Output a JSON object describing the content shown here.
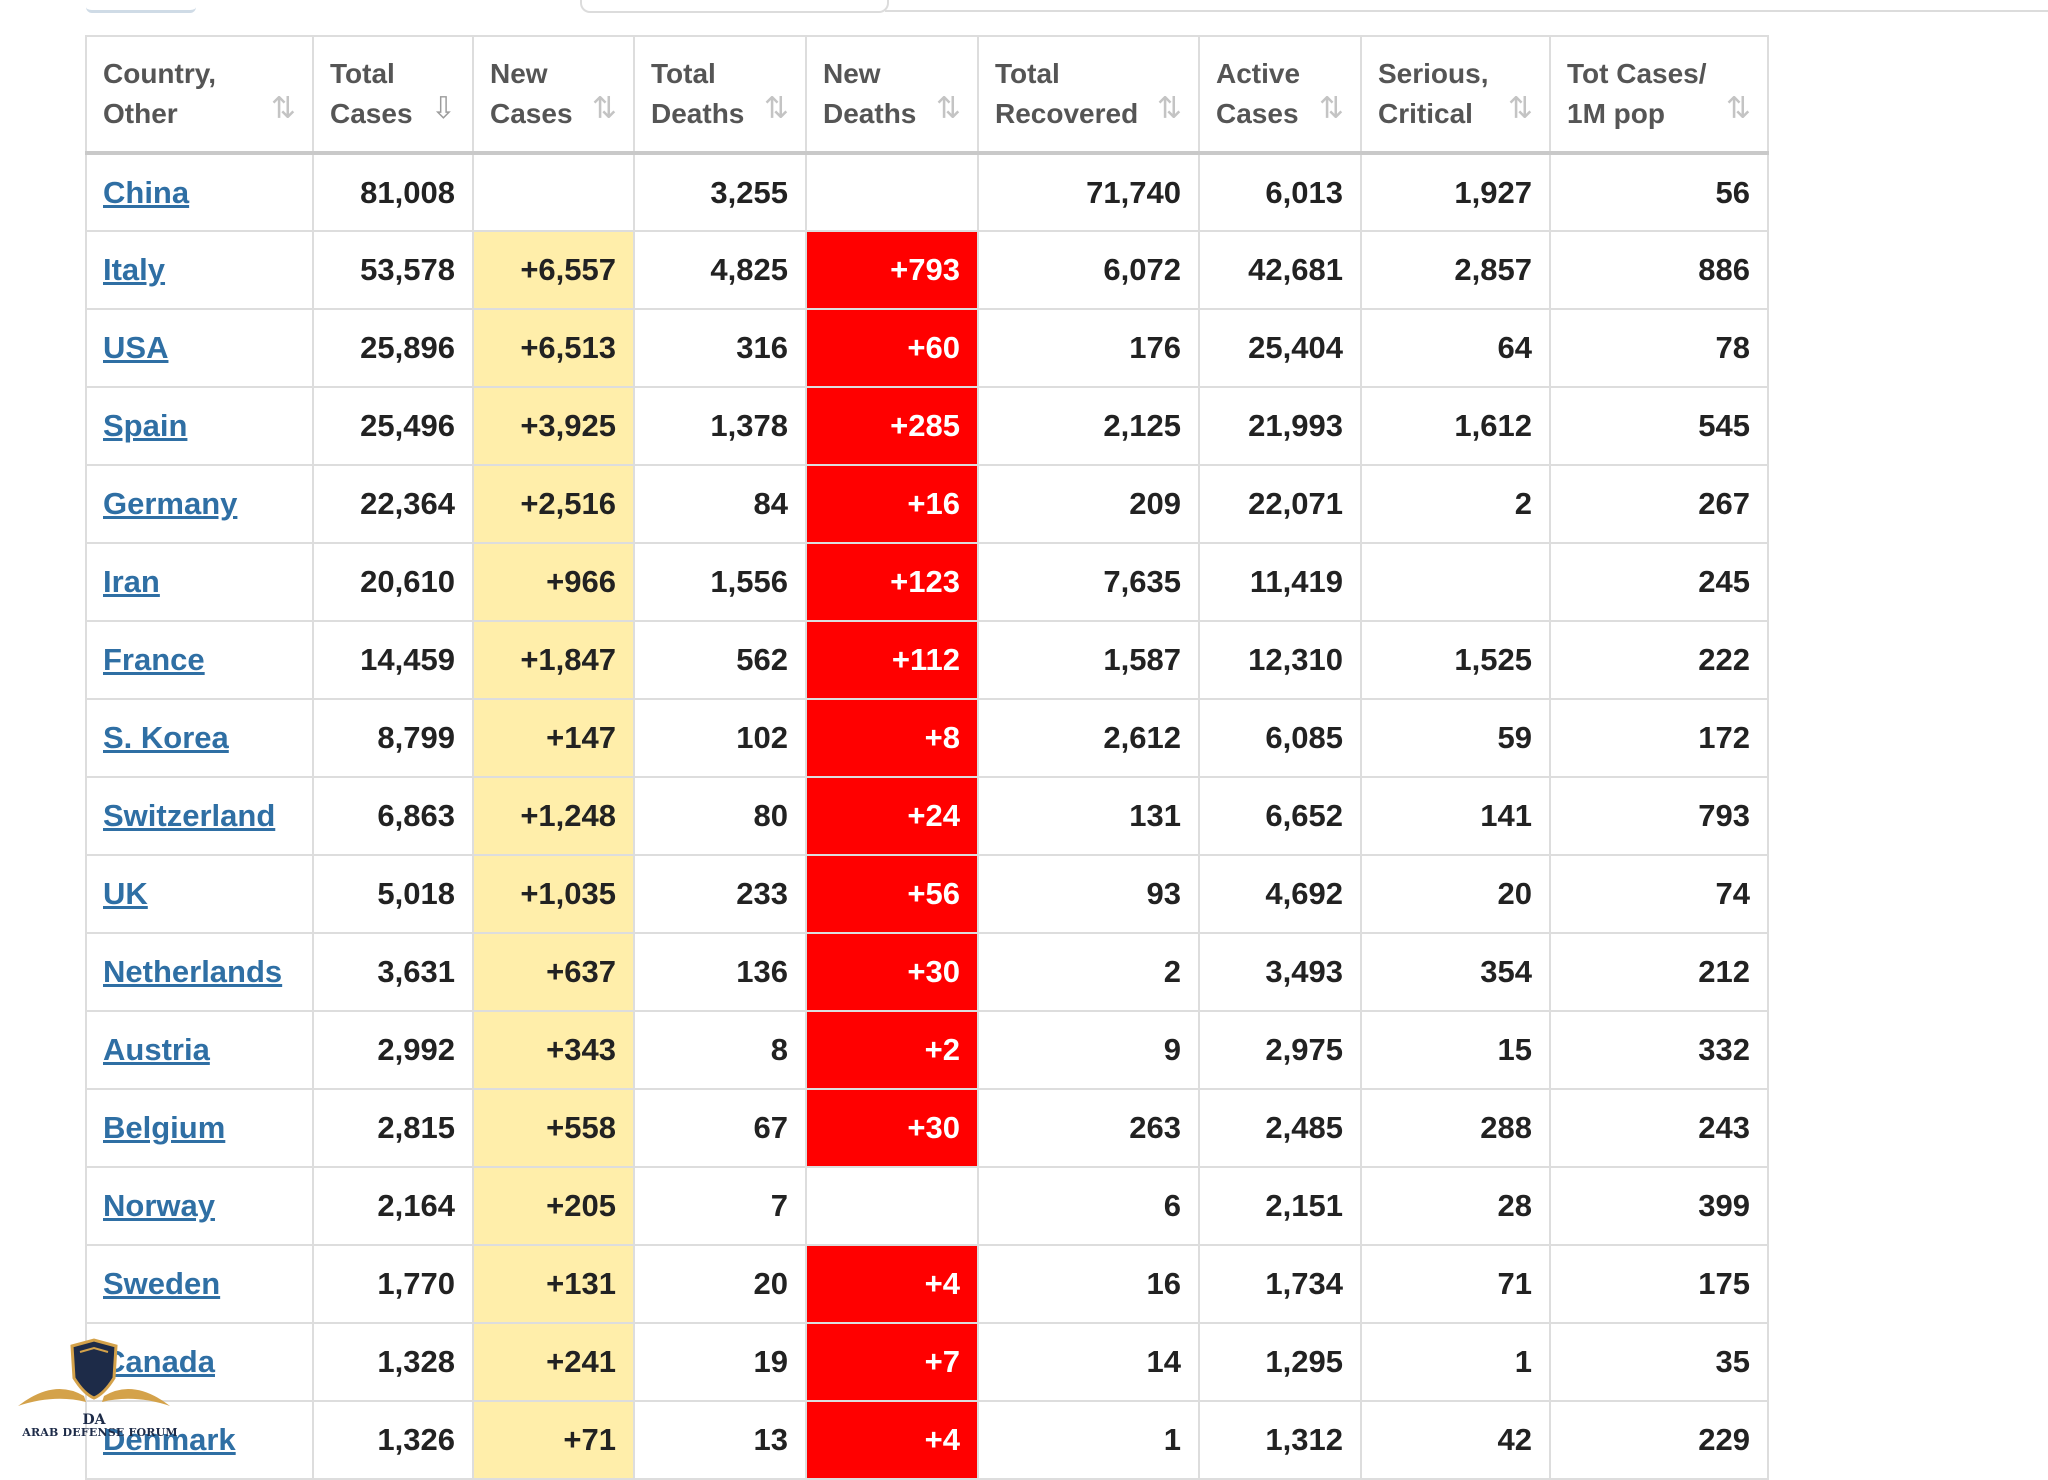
{
  "table": {
    "headers": [
      {
        "label": "Country,\nOther",
        "sort_icon": "sort-both-icon",
        "active": false
      },
      {
        "label": "Total\nCases",
        "sort_icon": "sort-desc-icon",
        "active": true
      },
      {
        "label": "New\nCases",
        "sort_icon": "sort-both-icon",
        "active": false
      },
      {
        "label": "Total\nDeaths",
        "sort_icon": "sort-both-icon",
        "active": false
      },
      {
        "label": "New\nDeaths",
        "sort_icon": "sort-both-icon",
        "active": false
      },
      {
        "label": "Total\nRecovered",
        "sort_icon": "sort-both-icon",
        "active": false
      },
      {
        "label": "Active\nCases",
        "sort_icon": "sort-both-icon",
        "active": false
      },
      {
        "label": "Serious,\nCritical",
        "sort_icon": "sort-both-icon",
        "active": false
      },
      {
        "label": "Tot Cases/\n1M pop",
        "sort_icon": "sort-both-icon",
        "active": false
      }
    ],
    "rows": [
      {
        "country": "China",
        "total_cases": "81,008",
        "new_cases": "",
        "total_deaths": "3,255",
        "new_deaths": "",
        "total_recovered": "71,740",
        "active_cases": "6,013",
        "serious_critical": "1,927",
        "cases_per_1m": "56"
      },
      {
        "country": "Italy",
        "total_cases": "53,578",
        "new_cases": "+6,557",
        "total_deaths": "4,825",
        "new_deaths": "+793",
        "total_recovered": "6,072",
        "active_cases": "42,681",
        "serious_critical": "2,857",
        "cases_per_1m": "886"
      },
      {
        "country": "USA",
        "total_cases": "25,896",
        "new_cases": "+6,513",
        "total_deaths": "316",
        "new_deaths": "+60",
        "total_recovered": "176",
        "active_cases": "25,404",
        "serious_critical": "64",
        "cases_per_1m": "78"
      },
      {
        "country": "Spain",
        "total_cases": "25,496",
        "new_cases": "+3,925",
        "total_deaths": "1,378",
        "new_deaths": "+285",
        "total_recovered": "2,125",
        "active_cases": "21,993",
        "serious_critical": "1,612",
        "cases_per_1m": "545"
      },
      {
        "country": "Germany",
        "total_cases": "22,364",
        "new_cases": "+2,516",
        "total_deaths": "84",
        "new_deaths": "+16",
        "total_recovered": "209",
        "active_cases": "22,071",
        "serious_critical": "2",
        "cases_per_1m": "267"
      },
      {
        "country": "Iran",
        "total_cases": "20,610",
        "new_cases": "+966",
        "total_deaths": "1,556",
        "new_deaths": "+123",
        "total_recovered": "7,635",
        "active_cases": "11,419",
        "serious_critical": "",
        "cases_per_1m": "245"
      },
      {
        "country": "France",
        "total_cases": "14,459",
        "new_cases": "+1,847",
        "total_deaths": "562",
        "new_deaths": "+112",
        "total_recovered": "1,587",
        "active_cases": "12,310",
        "serious_critical": "1,525",
        "cases_per_1m": "222"
      },
      {
        "country": "S. Korea",
        "total_cases": "8,799",
        "new_cases": "+147",
        "total_deaths": "102",
        "new_deaths": "+8",
        "total_recovered": "2,612",
        "active_cases": "6,085",
        "serious_critical": "59",
        "cases_per_1m": "172"
      },
      {
        "country": "Switzerland",
        "total_cases": "6,863",
        "new_cases": "+1,248",
        "total_deaths": "80",
        "new_deaths": "+24",
        "total_recovered": "131",
        "active_cases": "6,652",
        "serious_critical": "141",
        "cases_per_1m": "793"
      },
      {
        "country": "UK",
        "total_cases": "5,018",
        "new_cases": "+1,035",
        "total_deaths": "233",
        "new_deaths": "+56",
        "total_recovered": "93",
        "active_cases": "4,692",
        "serious_critical": "20",
        "cases_per_1m": "74"
      },
      {
        "country": "Netherlands",
        "total_cases": "3,631",
        "new_cases": "+637",
        "total_deaths": "136",
        "new_deaths": "+30",
        "total_recovered": "2",
        "active_cases": "3,493",
        "serious_critical": "354",
        "cases_per_1m": "212"
      },
      {
        "country": "Austria",
        "total_cases": "2,992",
        "new_cases": "+343",
        "total_deaths": "8",
        "new_deaths": "+2",
        "total_recovered": "9",
        "active_cases": "2,975",
        "serious_critical": "15",
        "cases_per_1m": "332"
      },
      {
        "country": "Belgium",
        "total_cases": "2,815",
        "new_cases": "+558",
        "total_deaths": "67",
        "new_deaths": "+30",
        "total_recovered": "263",
        "active_cases": "2,485",
        "serious_critical": "288",
        "cases_per_1m": "243"
      },
      {
        "country": "Norway",
        "total_cases": "2,164",
        "new_cases": "+205",
        "total_deaths": "7",
        "new_deaths": "",
        "total_recovered": "6",
        "active_cases": "2,151",
        "serious_critical": "28",
        "cases_per_1m": "399"
      },
      {
        "country": "Sweden",
        "total_cases": "1,770",
        "new_cases": "+131",
        "total_deaths": "20",
        "new_deaths": "+4",
        "total_recovered": "16",
        "active_cases": "1,734",
        "serious_critical": "71",
        "cases_per_1m": "175"
      },
      {
        "country": "Canada",
        "total_cases": "1,328",
        "new_cases": "+241",
        "total_deaths": "19",
        "new_deaths": "+7",
        "total_recovered": "14",
        "active_cases": "1,295",
        "serious_critical": "1",
        "cases_per_1m": "35"
      },
      {
        "country": "Denmark",
        "total_cases": "1,326",
        "new_cases": "+71",
        "total_deaths": "13",
        "new_deaths": "+4",
        "total_recovered": "1",
        "active_cases": "1,312",
        "serious_critical": "42",
        "cases_per_1m": "229"
      }
    ]
  },
  "watermark": {
    "text": "ARAB DEFENSE FORUM",
    "logo_icon": "eagle-shield-icon"
  },
  "colors": {
    "link": "#2f6fa4",
    "new_cases_bg": "#ffeeaa",
    "new_deaths_bg": "#ff0000",
    "new_deaths_text": "#ffffff"
  }
}
